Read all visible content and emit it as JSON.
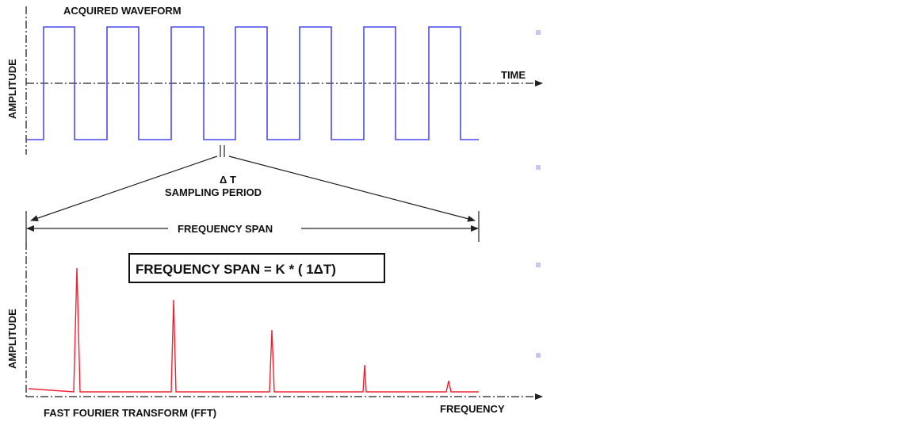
{
  "top_panel": {
    "title": "ACQUIRED WAVEFORM",
    "y_label": "AMPLITUDE",
    "x_label": "TIME"
  },
  "sampling": {
    "delta_label": "Δ T",
    "period_label": "SAMPLING PERIOD"
  },
  "span": {
    "label": "FREQUENCY SPAN"
  },
  "formula": {
    "text": "FREQUENCY SPAN = K * ( 1ΔT)"
  },
  "bottom_panel": {
    "title": "FAST FOURIER TRANSFORM (FFT)",
    "y_label": "AMPLITUDE",
    "x_label": "FREQUENCY"
  },
  "colors": {
    "waveform": "#4a4aee",
    "spectrum": "#ee2233",
    "axis": "#222222",
    "marker": "#c8c8ee"
  }
}
